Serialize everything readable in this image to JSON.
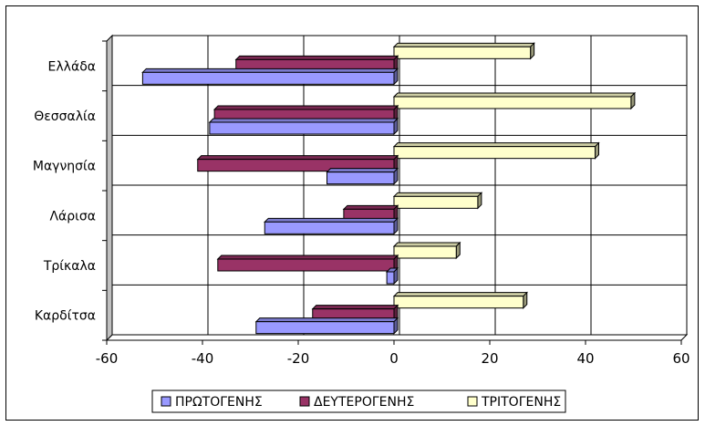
{
  "chart_data": {
    "type": "bar",
    "orientation": "horizontal",
    "categories": [
      "Ελλάδα",
      "Θεσσαλία",
      "Μαγνησία",
      "Λάρισα",
      "Τρίκαλα",
      "Καρδίτσα"
    ],
    "series": [
      {
        "name": "ΠΡΩΤΟΓΕΝΗΣ",
        "color": "#9999FF",
        "values": [
          -52.5,
          -38.5,
          -14,
          -27,
          -1.5,
          -28.8
        ]
      },
      {
        "name": "ΔΕΥΤΕΡΟΓΕΝΗΣ",
        "color": "#993366",
        "values": [
          -33,
          -37.5,
          -41,
          -10.5,
          -36.8,
          -17
        ]
      },
      {
        "name": "ΤΡΙΤΟΓΕΝΗΣ",
        "color": "#FFFFCC",
        "values": [
          28.5,
          49.5,
          42,
          17.5,
          13,
          27
        ]
      }
    ],
    "xlim": [
      -60,
      60
    ],
    "xticks": [
      "-60",
      "-40",
      "-20",
      "0",
      "20",
      "40",
      "60"
    ],
    "title": "",
    "xlabel": "",
    "ylabel": "",
    "grid": true,
    "legend_position": "bottom"
  }
}
